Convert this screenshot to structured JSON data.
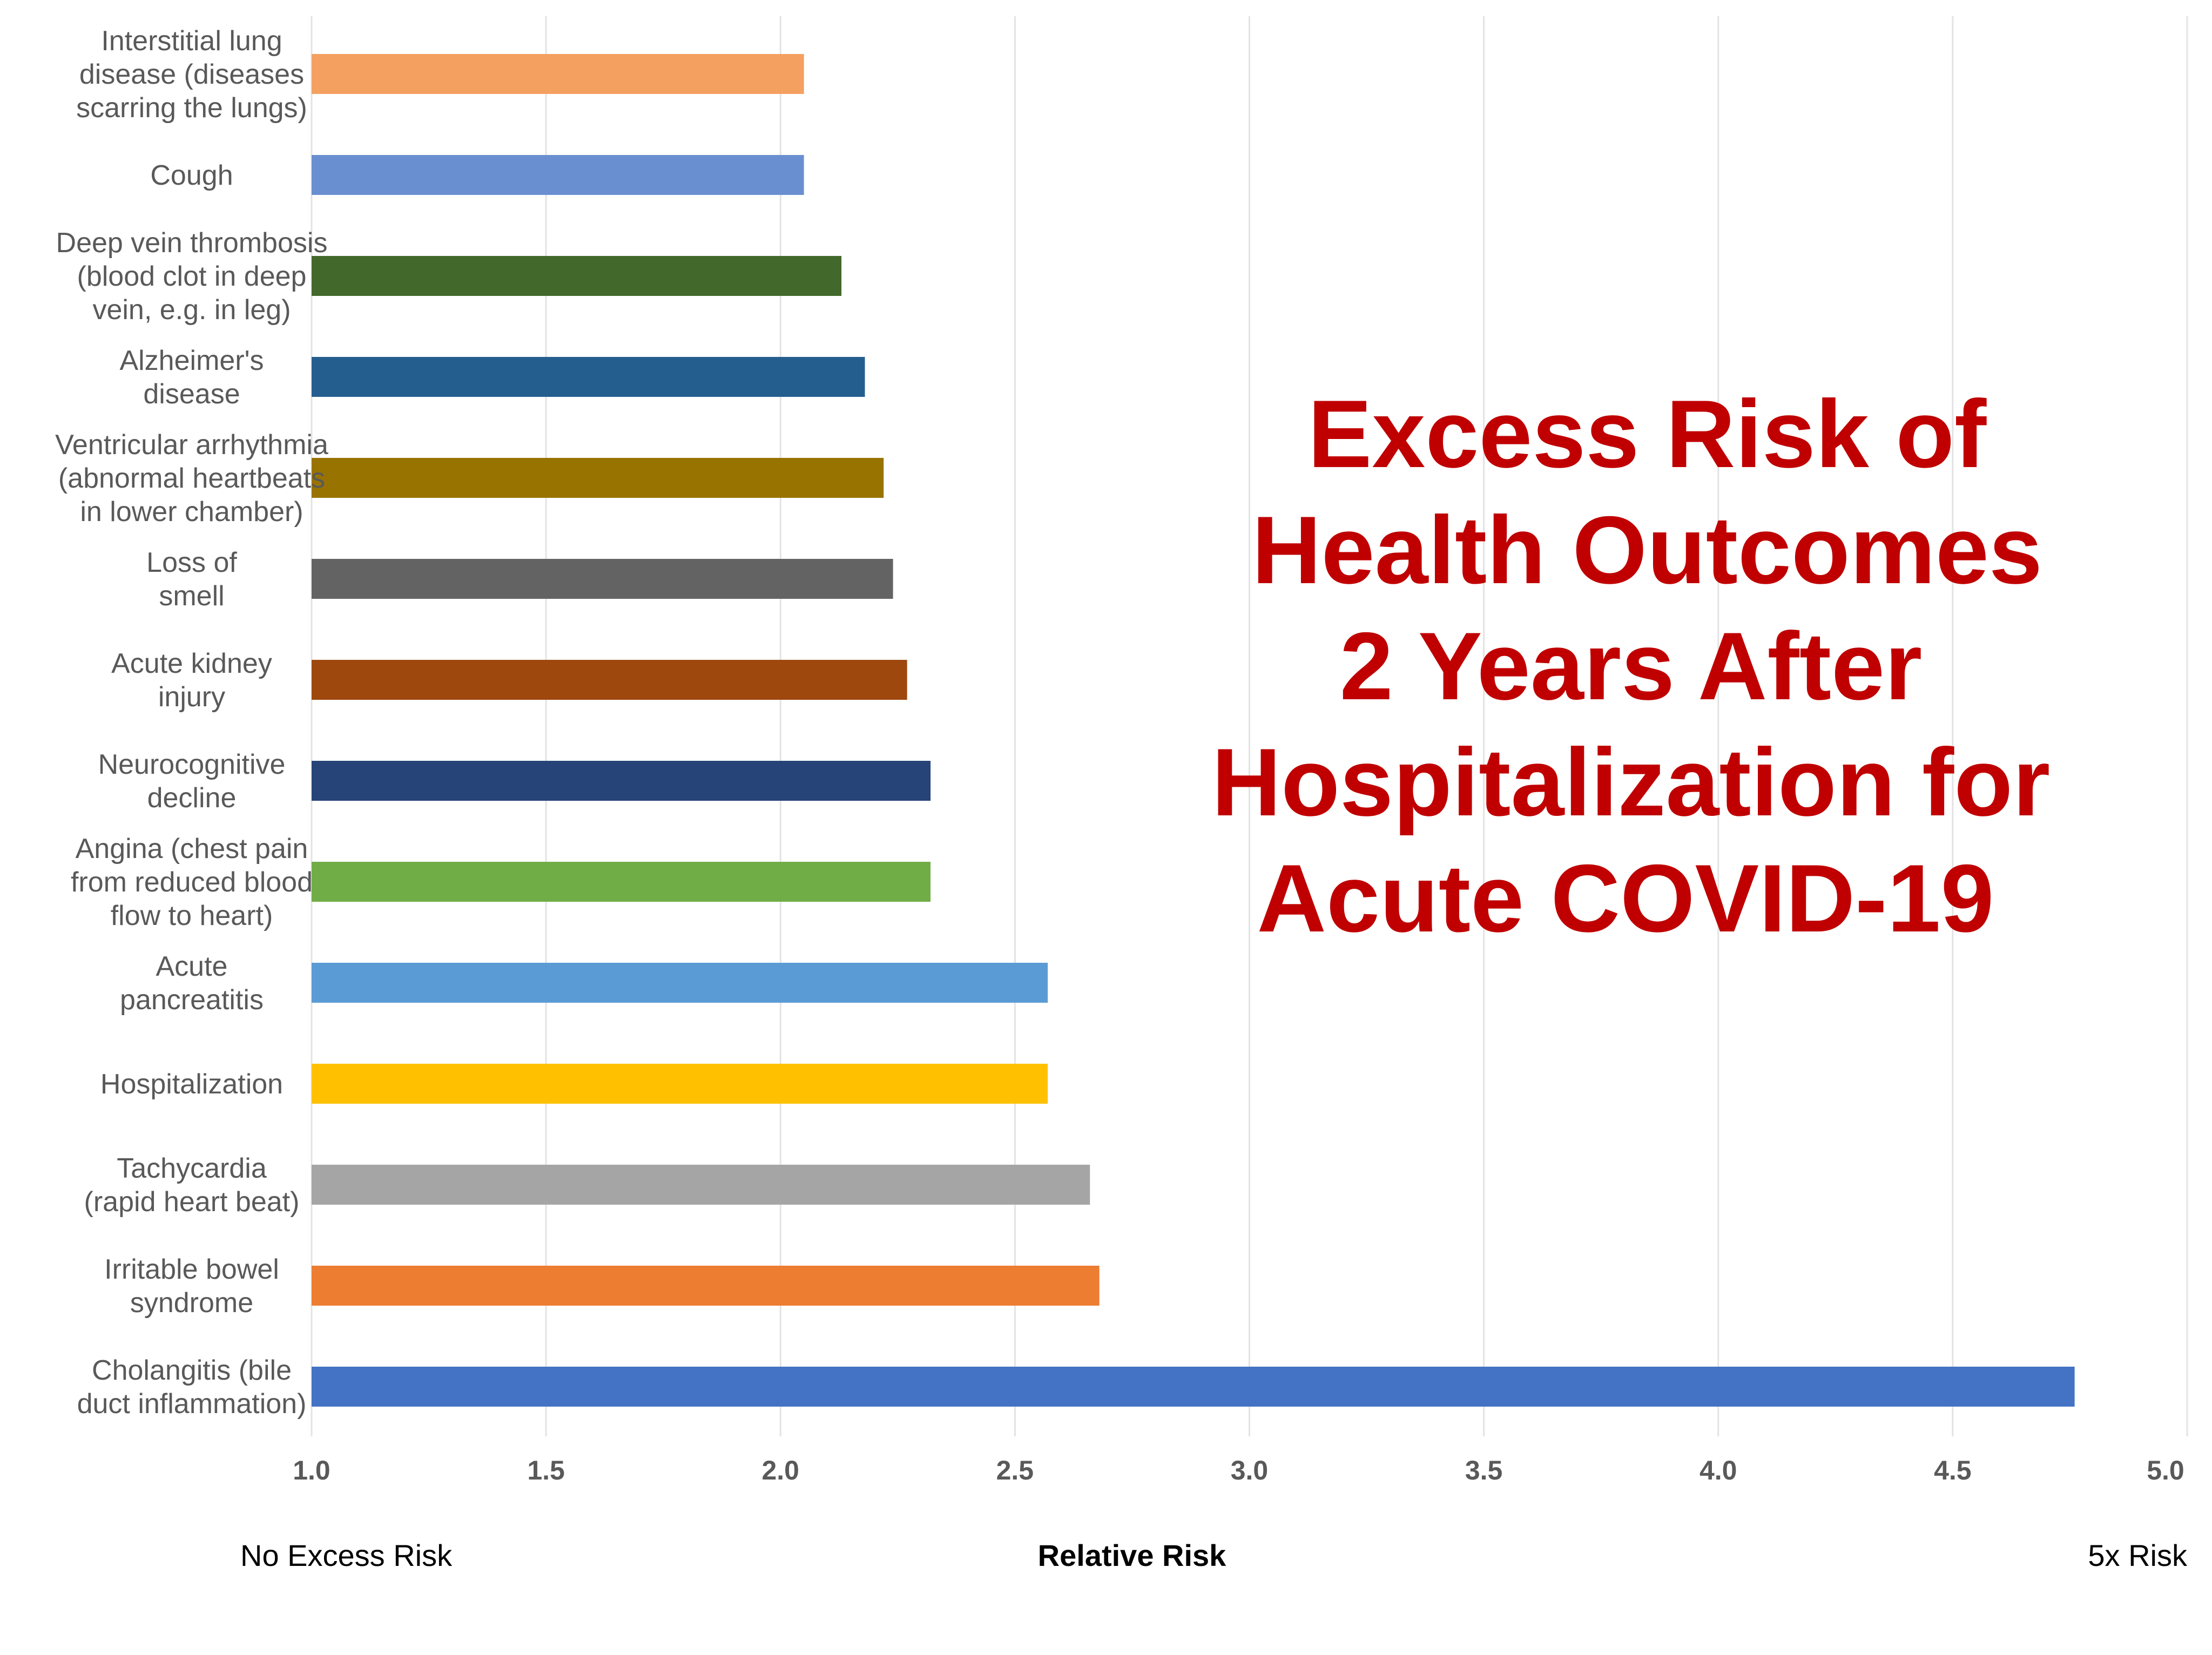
{
  "chart_data": {
    "type": "bar",
    "orientation": "horizontal",
    "title_lines": [
      "Excess Risk of",
      "Health Outcomes",
      "2 Years After",
      "Hospitalization for",
      "Acute COVID-19"
    ],
    "xlabel": "Relative Risk",
    "x_left_note": "No Excess Risk",
    "x_right_note": "5x Risk",
    "xlim": [
      1.0,
      5.0
    ],
    "xticks": [
      "1.0",
      "1.5",
      "2.0",
      "2.5",
      "3.0",
      "3.5",
      "4.0",
      "4.5",
      "5.0"
    ],
    "grid": "vertical",
    "legend": "none",
    "categories": [
      {
        "lines": [
          "Interstitial lung",
          "disease (diseases",
          "scarring the lungs)"
        ],
        "value": 2.05,
        "color": "#F4A060"
      },
      {
        "lines": [
          "Cough"
        ],
        "value": 2.05,
        "color": "#6A8FD1"
      },
      {
        "lines": [
          "Deep vein thrombosis",
          "(blood clot in deep",
          "vein, e.g. in leg)"
        ],
        "value": 2.13,
        "color": "#43682B"
      },
      {
        "lines": [
          "Alzheimer's",
          "disease"
        ],
        "value": 2.18,
        "color": "#245E8F"
      },
      {
        "lines": [
          "Ventricular arrhythmia",
          "(abnormal heartbeats",
          "in lower chamber)"
        ],
        "value": 2.22,
        "color": "#997300"
      },
      {
        "lines": [
          "Loss of",
          "smell"
        ],
        "value": 2.24,
        "color": "#636363"
      },
      {
        "lines": [
          "Acute kidney",
          "injury"
        ],
        "value": 2.27,
        "color": "#9E480E"
      },
      {
        "lines": [
          "Neurocognitive",
          "decline"
        ],
        "value": 2.32,
        "color": "#264478"
      },
      {
        "lines": [
          "Angina (chest pain",
          "from reduced blood",
          "flow to heart)"
        ],
        "value": 2.32,
        "color": "#70AD47"
      },
      {
        "lines": [
          "Acute",
          "pancreatitis"
        ],
        "value": 2.57,
        "color": "#5B9BD5"
      },
      {
        "lines": [
          "Hospitalization"
        ],
        "value": 2.57,
        "color": "#FFC000"
      },
      {
        "lines": [
          "Tachycardia",
          "(rapid heart beat)"
        ],
        "value": 2.66,
        "color": "#A5A5A5"
      },
      {
        "lines": [
          "Irritable bowel",
          "syndrome"
        ],
        "value": 2.68,
        "color": "#ED7D31"
      },
      {
        "lines": [
          "Cholangitis (bile",
          "duct inflammation)"
        ],
        "value": 4.76,
        "color": "#4472C4"
      }
    ]
  }
}
